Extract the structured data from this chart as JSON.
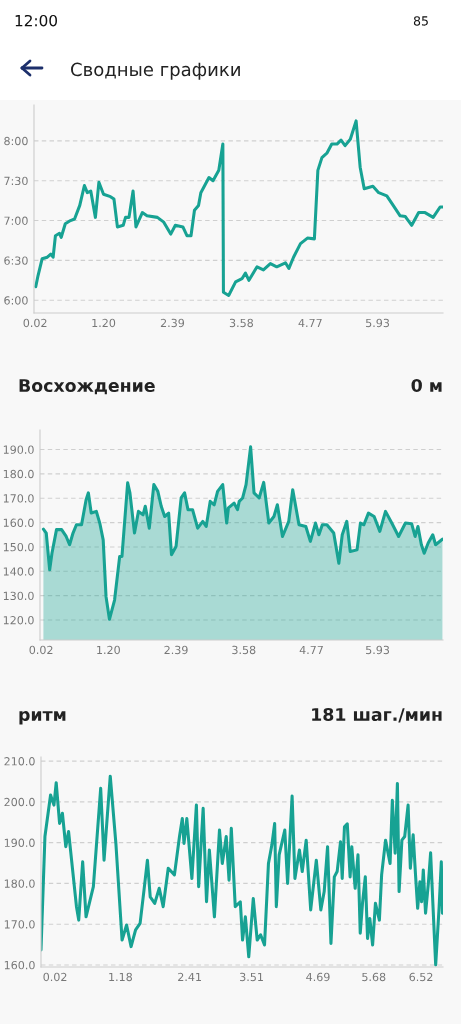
{
  "chart_data": [
    {
      "type": "line",
      "title": "Сводные графики",
      "annotations": [
        "12:00",
        "85"
      ],
      "color": "#17a293",
      "grid": "y",
      "xlim": [
        0,
        7.06
      ],
      "xticks": [
        0.02,
        {
          "value": 1.2,
          "label": "1.20"
        },
        2.39,
        3.58,
        4.77,
        5.93
      ],
      "ylim": [
        5.84,
        8.45
      ],
      "yticks": [
        {
          "value": 6,
          "label": "6:00"
        },
        {
          "value": 6.5,
          "label": "6:30"
        },
        {
          "value": 7,
          "label": "7:00"
        },
        {
          "value": 7.5,
          "label": "7:30"
        },
        {
          "value": 8,
          "label": "8:00"
        }
      ],
      "x": [
        0.03,
        0.07,
        0.14,
        0.23,
        0.29,
        0.33,
        0.37,
        0.44,
        0.47,
        0.54,
        0.63,
        0.7,
        0.79,
        0.87,
        0.92,
        0.98,
        1.06,
        1.12,
        1.2,
        1.32,
        1.38,
        1.44,
        1.54,
        1.58,
        1.64,
        1.71,
        1.76,
        1.87,
        1.95,
        2.13,
        2.24,
        2.36,
        2.44,
        2.57,
        2.64,
        2.71,
        2.77,
        2.84,
        2.88,
        3.02,
        3.09,
        3.19,
        3.26,
        3.27,
        3.36,
        3.48,
        3.59,
        3.65,
        3.71,
        3.85,
        3.96,
        4.08,
        4.19,
        4.34,
        4.4,
        4.48,
        4.6,
        4.72,
        4.84,
        4.9,
        4.97,
        5.06,
        5.14,
        5.23,
        5.3,
        5.37,
        5.46,
        5.56,
        5.63,
        5.7,
        5.85,
        5.95,
        6.09,
        6.2,
        6.32,
        6.41,
        6.52,
        6.64,
        6.75,
        6.89,
        7.01,
        7.05
      ],
      "values": [
        6.17,
        6.31,
        6.52,
        6.54,
        6.58,
        6.54,
        6.81,
        6.84,
        6.79,
        6.96,
        7.0,
        7.02,
        7.19,
        7.44,
        7.35,
        7.37,
        7.04,
        7.48,
        7.33,
        7.3,
        7.27,
        6.92,
        6.94,
        7.04,
        7.04,
        7.37,
        6.92,
        7.1,
        7.06,
        7.04,
        6.98,
        6.83,
        6.94,
        6.92,
        6.81,
        6.81,
        7.13,
        7.19,
        7.35,
        7.54,
        7.5,
        7.63,
        7.96,
        6.1,
        6.06,
        6.23,
        6.27,
        6.34,
        6.25,
        6.42,
        6.38,
        6.46,
        6.42,
        6.47,
        6.4,
        6.54,
        6.71,
        6.78,
        6.77,
        7.63,
        7.79,
        7.85,
        7.96,
        7.96,
        8.01,
        7.94,
        8.02,
        8.25,
        7.67,
        7.4,
        7.43,
        7.35,
        7.31,
        7.19,
        7.06,
        7.05,
        6.94,
        7.1,
        7.1,
        7.04,
        7.17,
        7.17
      ]
    },
    {
      "type": "area",
      "title": "Восхождение",
      "subtitle": "0 м",
      "color": "#17a293",
      "grid": "y",
      "xlim": [
        0,
        7.08
      ],
      "xticks": [
        0.02,
        {
          "value": 1.2,
          "label": "1.20"
        },
        2.39,
        3.58,
        4.77,
        5.93
      ],
      "ylim": [
        111.8,
        198
      ],
      "yticks": [
        {
          "value": 120,
          "label": "120.0"
        },
        {
          "value": 130,
          "label": "130.0"
        },
        {
          "value": 140,
          "label": "140.0"
        },
        {
          "value": 150,
          "label": "150.0"
        },
        {
          "value": 160,
          "label": "160.0"
        },
        {
          "value": 170,
          "label": "170.0"
        },
        {
          "value": 180,
          "label": "180.0"
        },
        {
          "value": 190,
          "label": "190.0"
        }
      ],
      "x": [
        0.06,
        0.11,
        0.17,
        0.21,
        0.29,
        0.38,
        0.46,
        0.52,
        0.58,
        0.64,
        0.73,
        0.81,
        0.85,
        0.9,
        0.99,
        1.05,
        1.11,
        1.16,
        1.22,
        1.31,
        1.4,
        1.44,
        1.54,
        1.58,
        1.66,
        1.73,
        1.81,
        1.85,
        1.92,
        2.0,
        2.07,
        2.13,
        2.19,
        2.26,
        2.31,
        2.39,
        2.48,
        2.54,
        2.6,
        2.68,
        2.77,
        2.86,
        2.92,
        2.99,
        3.06,
        3.12,
        3.21,
        3.28,
        3.31,
        3.41,
        3.47,
        3.5,
        3.56,
        3.62,
        3.7,
        3.76,
        3.85,
        3.93,
        4.02,
        4.11,
        4.17,
        4.26,
        4.37,
        4.44,
        4.55,
        4.67,
        4.75,
        4.84,
        4.9,
        4.96,
        5.04,
        5.16,
        5.25,
        5.31,
        5.39,
        5.45,
        5.57,
        5.63,
        5.69,
        5.77,
        5.87,
        5.97,
        6.07,
        6.18,
        6.3,
        6.42,
        6.53,
        6.59,
        6.64,
        6.7,
        6.75,
        6.82,
        6.9,
        6.95,
        7.07
      ],
      "values": [
        157.3,
        155.7,
        140.6,
        147.4,
        157.1,
        157.1,
        154.3,
        150.9,
        155.7,
        159.1,
        159.1,
        169.4,
        172.2,
        163.9,
        164.6,
        159.8,
        152.9,
        129.6,
        120.3,
        128.2,
        146.1,
        146.1,
        176.3,
        172.2,
        155.7,
        164.6,
        163.2,
        166.7,
        157.7,
        175.6,
        172.8,
        166.7,
        162.5,
        163.9,
        146.8,
        150.2,
        170.1,
        172.2,
        165.3,
        165.3,
        157.7,
        160.5,
        158.4,
        168.7,
        167.3,
        172.8,
        175.6,
        159.8,
        166,
        168,
        165.3,
        168.7,
        170.1,
        175.6,
        191.1,
        172.2,
        170.1,
        176.5,
        159.8,
        162.5,
        167.3,
        154.3,
        160.5,
        173.5,
        159.1,
        158.4,
        152.3,
        159.8,
        155,
        159.1,
        159.1,
        155.7,
        143.3,
        155,
        160.5,
        148.1,
        148.8,
        159.8,
        159.1,
        163.9,
        162.5,
        156.4,
        164.6,
        159.8,
        154.3,
        159.8,
        159.5,
        154.3,
        158.4,
        150.9,
        147.4,
        151.6,
        155,
        150.9,
        153.2
      ]
    },
    {
      "type": "line",
      "title": "ритм",
      "subtitle": "181 шаг./мин",
      "color": "#17a293",
      "grid": "y",
      "xlim": [
        -0.23,
        6.91
      ],
      "xticks": [
        0.02,
        1.18,
        2.41,
        3.51,
        4.69,
        5.68,
        6.52
      ],
      "ylim": [
        159.5,
        211
      ],
      "yticks": [
        {
          "value": 160,
          "label": "160.0"
        },
        {
          "value": 170,
          "label": "170.0"
        },
        {
          "value": 180,
          "label": "180.0"
        },
        {
          "value": 190,
          "label": "190.0"
        },
        {
          "value": 200,
          "label": "200.0"
        },
        {
          "value": 210,
          "label": "210.0"
        }
      ],
      "x": [
        -0.23,
        -0.16,
        -0.06,
        0.0,
        0.04,
        0.1,
        0.15,
        0.21,
        0.26,
        0.4,
        0.44,
        0.51,
        0.57,
        0.7,
        0.83,
        0.89,
        1.0,
        1.1,
        1.21,
        1.29,
        1.37,
        1.45,
        1.53,
        1.6,
        1.66,
        1.71,
        1.79,
        1.87,
        1.94,
        2.03,
        2.14,
        2.23,
        2.28,
        2.31,
        2.36,
        2.45,
        2.53,
        2.57,
        2.65,
        2.71,
        2.76,
        2.85,
        2.94,
        2.99,
        3.06,
        3.11,
        3.15,
        3.22,
        3.31,
        3.35,
        3.4,
        3.46,
        3.54,
        3.61,
        3.67,
        3.74,
        3.81,
        3.87,
        3.92,
        3.95,
        4.0,
        4.1,
        4.15,
        4.23,
        4.28,
        4.36,
        4.41,
        4.48,
        4.56,
        4.66,
        4.74,
        4.8,
        4.86,
        4.92,
        4.98,
        5.03,
        5.09,
        5.12,
        5.16,
        5.21,
        5.26,
        5.29,
        5.35,
        5.4,
        5.44,
        5.48,
        5.53,
        5.57,
        5.61,
        5.66,
        5.71,
        5.78,
        5.82,
        5.89,
        5.97,
        6.01,
        6.06,
        6.1,
        6.13,
        6.18,
        6.23,
        6.29,
        6.33,
        6.38,
        6.42,
        6.46,
        6.5,
        6.53,
        6.56,
        6.6,
        6.65,
        6.69,
        6.73,
        6.78,
        6.84,
        6.88,
        6.9
      ],
      "values": [
        163.7,
        191.5,
        201.7,
        199.2,
        204.7,
        194.7,
        197.2,
        189,
        192.7,
        174.3,
        171,
        185.3,
        171.8,
        179.2,
        203.3,
        185.7,
        206.3,
        189.8,
        166.1,
        169.8,
        164.5,
        168.6,
        170.2,
        178.4,
        185.7,
        176.7,
        175.1,
        178.8,
        174.3,
        183.7,
        182.1,
        191.5,
        195.9,
        189.8,
        195.9,
        181.2,
        199.2,
        179.2,
        198.4,
        175.5,
        188.2,
        171.8,
        193.1,
        184.9,
        191.5,
        180.8,
        193.5,
        174.3,
        175.5,
        166.1,
        171.8,
        162,
        176.3,
        166.1,
        167.4,
        164.9,
        184.9,
        189.4,
        194.7,
        174.3,
        187,
        193.1,
        180,
        201.4,
        181.2,
        188.2,
        182.9,
        190.6,
        173.5,
        185.7,
        173.5,
        178,
        189,
        165.3,
        181.6,
        182.9,
        190.2,
        181.2,
        193.9,
        194.6,
        181.6,
        189,
        178.8,
        187,
        167.8,
        175.1,
        181.6,
        166.5,
        171.4,
        164.9,
        175.1,
        171,
        182.1,
        190.6,
        184.9,
        200.4,
        187.4,
        204.5,
        178,
        190.6,
        191.5,
        199.2,
        183.7,
        191.9,
        182.5,
        173.9,
        180.4,
        175.5,
        183.3,
        172.7,
        180,
        187.5,
        175.1,
        160,
        173.9,
        185.3,
        172.7
      ]
    }
  ]
}
